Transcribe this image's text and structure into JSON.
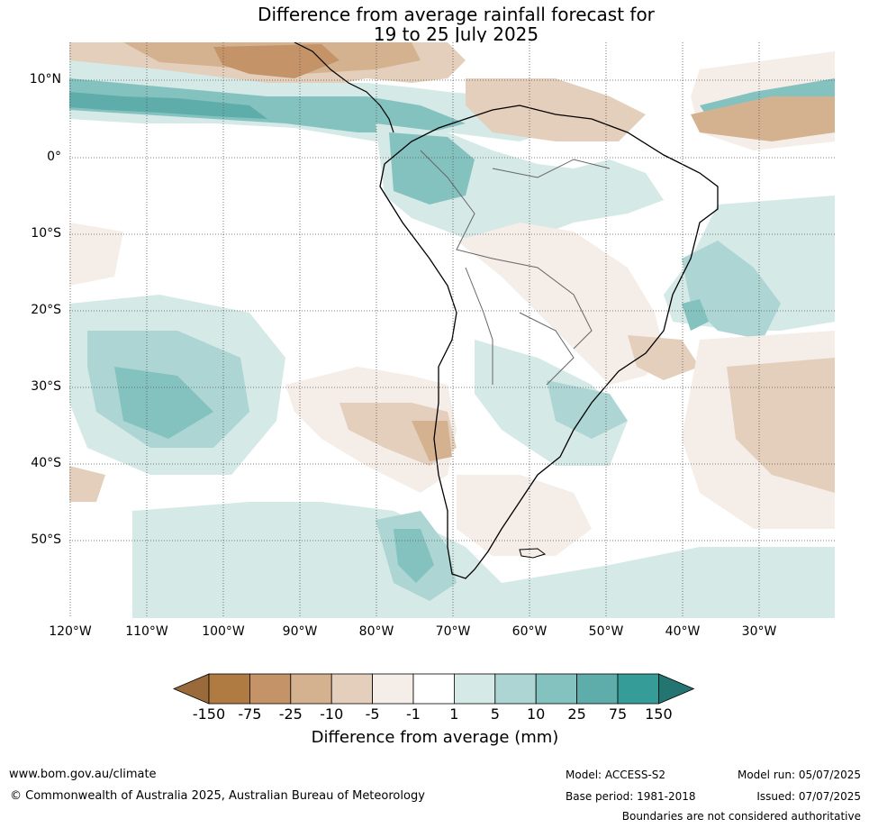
{
  "title": {
    "line1": "Difference from average rainfall forecast for",
    "line2": "19 to 25 July 2025"
  },
  "axes": {
    "lat_labels": [
      "10°N",
      "0°",
      "10°S",
      "20°S",
      "30°S",
      "40°S",
      "50°S"
    ],
    "lon_labels": [
      "120°W",
      "110°W",
      "100°W",
      "90°W",
      "80°W",
      "70°W",
      "60°W",
      "50°W",
      "40°W",
      "30°W"
    ]
  },
  "colorbar": {
    "ticks": [
      "-150",
      "-75",
      "-25",
      "-10",
      "-5",
      "-1",
      "1",
      "5",
      "10",
      "25",
      "75",
      "150"
    ],
    "label": "Difference from average (mm)",
    "colors": [
      "#9a6a3a",
      "#b07a43",
      "#c49468",
      "#d4b290",
      "#e4cfbc",
      "#f5ede8",
      "#ffffff",
      "#d5e9e7",
      "#acd5d3",
      "#84c2c0",
      "#5fadab",
      "#369c98",
      "#247571"
    ]
  },
  "footer": {
    "website": "www.bom.gov.au/climate",
    "copyright": "© Commonwealth of Australia 2025, Australian Bureau of Meteorology",
    "model": "Model: ACCESS-S2",
    "model_run": "Model run: 05/07/2025",
    "base_period": "Base period: 1981-2018",
    "issued": "Issued: 07/07/2025",
    "disclaimer": "Boundaries are not considered authoritative"
  }
}
